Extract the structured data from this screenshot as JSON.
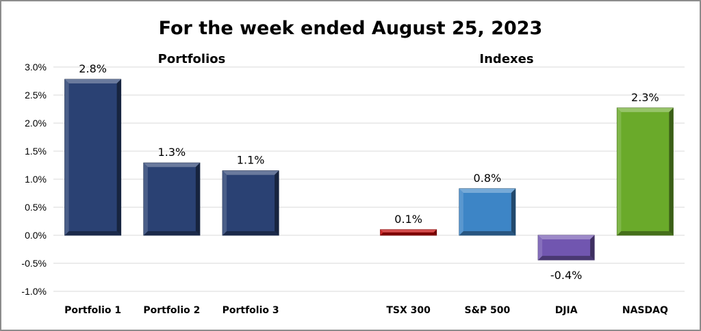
{
  "chart_data": {
    "type": "bar",
    "title": "For the week ended August 25, 2023",
    "annotations": [
      "Portfolios",
      "Indexes"
    ],
    "categories": [
      "Portfolio 1",
      "Portfolio 2",
      "Portfolio 3",
      "",
      "TSX 300",
      "S&P 500",
      "DJIA",
      "NASDAQ"
    ],
    "values": [
      2.78,
      1.29,
      1.15,
      null,
      0.1,
      0.83,
      -0.44,
      2.27
    ],
    "data_labels": [
      "2.8%",
      "1.3%",
      "1.1%",
      "",
      "0.1%",
      "0.8%",
      "-0.4%",
      "2.3%"
    ],
    "colors": [
      "#2a4173",
      "#2a4173",
      "#2a4173",
      "",
      "#c00000",
      "#3d85c6",
      "#7156b0",
      "#6aaa2a"
    ],
    "ylim": [
      -1.0,
      3.0
    ],
    "yticks": [
      "-1.0%",
      "-0.5%",
      "0.0%",
      "0.5%",
      "1.0%",
      "1.5%",
      "2.0%",
      "2.5%",
      "3.0%"
    ],
    "xlabel": "",
    "ylabel": "",
    "grid": true,
    "legend": "none"
  }
}
